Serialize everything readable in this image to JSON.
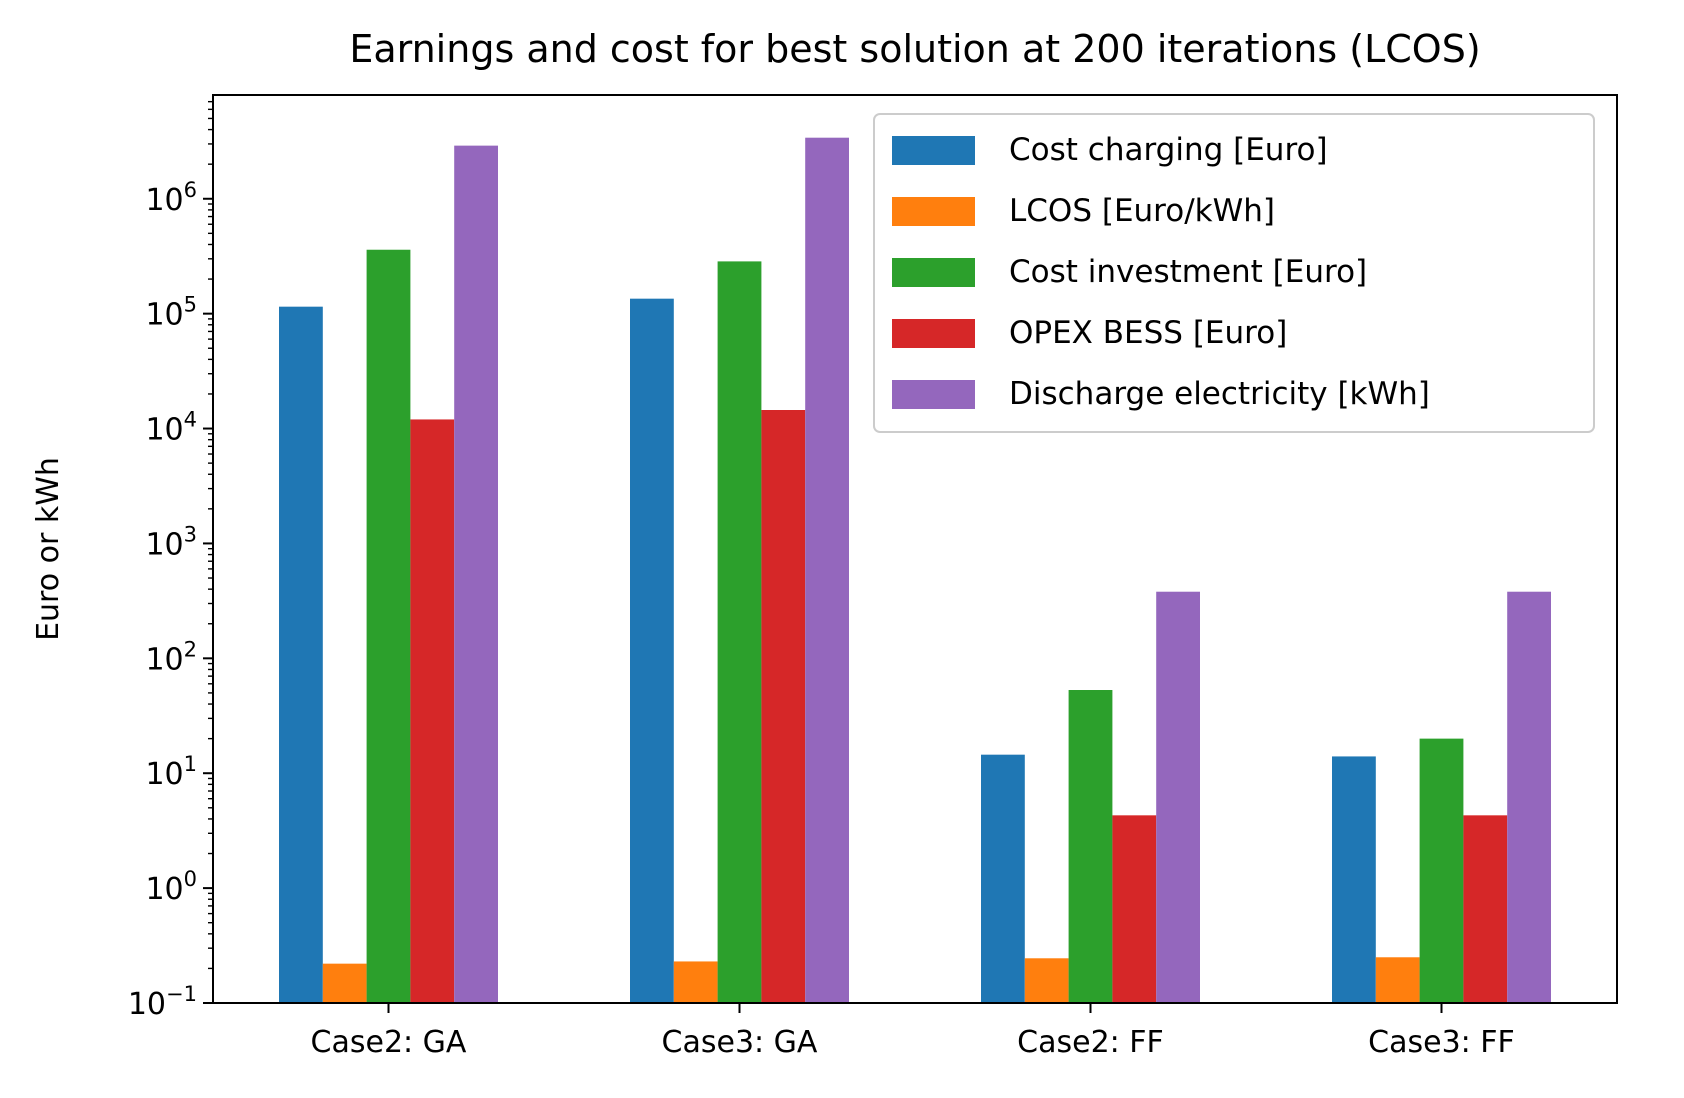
{
  "chart_data": {
    "type": "bar",
    "title": "Earnings and cost for best solution at 200 iterations (LCOS)",
    "xlabel": "",
    "ylabel": "Euro or kWh",
    "yscale": "log",
    "ylim": [
      0.1,
      8000000
    ],
    "categories": [
      "Case2: GA",
      "Case3: GA",
      "Case2: FF",
      "Case3: FF"
    ],
    "series": [
      {
        "name": "Cost charging [Euro]",
        "color": "#1f77b4",
        "values": [
          115000,
          135000,
          14.5,
          14
        ]
      },
      {
        "name": "LCOS [Euro/kWh]",
        "color": "#ff7f0e",
        "values": [
          0.22,
          0.23,
          0.245,
          0.25
        ]
      },
      {
        "name": "Cost investment [Euro]",
        "color": "#2ca02c",
        "values": [
          360000,
          285000,
          53,
          20
        ]
      },
      {
        "name": "OPEX BESS [Euro]",
        "color": "#d62728",
        "values": [
          12000,
          14500,
          4.3,
          4.3
        ]
      },
      {
        "name": "Discharge electricity [kWh]",
        "color": "#9467bd",
        "values": [
          2900000,
          3400000,
          380,
          380
        ]
      }
    ],
    "ytick_exponents": [
      "−1",
      "0",
      "1",
      "2",
      "3",
      "4",
      "5",
      "6"
    ],
    "grid": false,
    "legend_position": "upper right"
  }
}
